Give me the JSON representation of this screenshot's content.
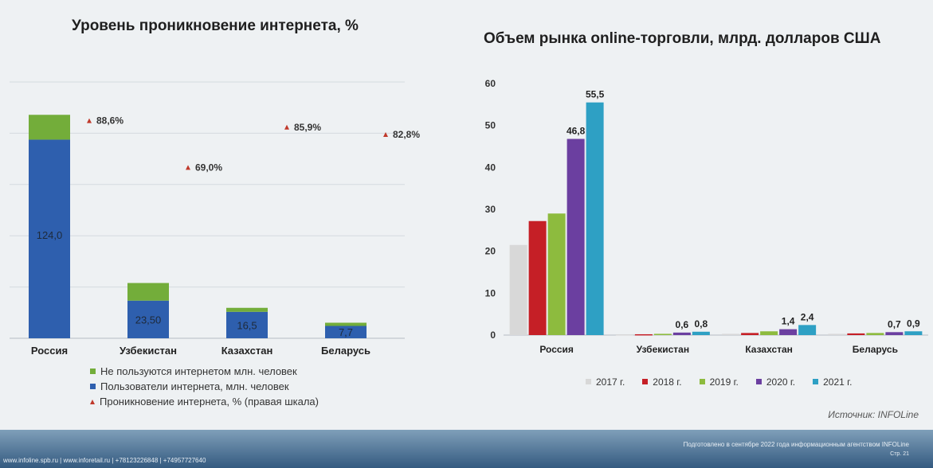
{
  "slide": {
    "source_label": "Источник: INFOLine",
    "footer_left": "www.infoline.spb.ru | www.inforetail.ru | +78123226848 | +74957727640",
    "footer_right": "Подготовлено в сентябре 2022 года информационным агентством INFOLine",
    "footer_page": "Стр. 21"
  },
  "chart_data": [
    {
      "type": "bar",
      "stacked": true,
      "title": "Уровень проникновение интернета, %",
      "categories": [
        "Россия",
        "Узбекистан",
        "Казахстан",
        "Беларусь"
      ],
      "series": [
        {
          "name": "Пользователи интернета, млн. человек",
          "values": [
            124.0,
            23.5,
            16.5,
            7.7
          ],
          "labels": [
            "124,0",
            "23,50",
            "16,5",
            "7,7"
          ],
          "color": "#2e5fae"
        },
        {
          "name": "Не пользуются интернетом млн. человек",
          "values": [
            15.5,
            11.0,
            2.5,
            2.0
          ],
          "color": "#73ad3a"
        }
      ],
      "secondary_series": {
        "name": "Проникновение интернета, % (правая шкала)",
        "type": "marker",
        "values": [
          88.6,
          69.0,
          85.9,
          82.8
        ],
        "labels": [
          "88,6%",
          "69,0%",
          "85,9%",
          "82,8%"
        ],
        "color": "#c0392b"
      },
      "ylim": [
        0,
        160
      ],
      "grid": true,
      "legend": "bottom"
    },
    {
      "type": "bar",
      "title": "Объем рынка online-торговли, млрд. долларов США",
      "categories": [
        "Россия",
        "Узбекистан",
        "Казахстан",
        "Беларусь"
      ],
      "series": [
        {
          "name": "2017 г.",
          "values": [
            21.5,
            0.2,
            0.3,
            0.3
          ],
          "color": "#d8d8d8"
        },
        {
          "name": "2018 г.",
          "values": [
            27.2,
            0.2,
            0.5,
            0.4
          ],
          "color": "#c51f26"
        },
        {
          "name": "2019 г.",
          "values": [
            29.0,
            0.3,
            0.9,
            0.5
          ],
          "color": "#8dbb3e"
        },
        {
          "name": "2020 г.",
          "values": [
            46.8,
            0.6,
            1.4,
            0.7
          ],
          "color": "#6b3fa0"
        },
        {
          "name": "2021 г.",
          "values": [
            55.5,
            0.8,
            2.4,
            0.9
          ],
          "color": "#2ea0c4"
        }
      ],
      "data_labels": {
        "Россия": {
          "2020 г.": "46,8",
          "2021 г.": "55,5"
        },
        "Узбекистан": {
          "2020 г.": "0,6",
          "2021 г.": "0,8"
        },
        "Казахстан": {
          "2020 г.": "1,4",
          "2021 г.": "2,4"
        },
        "Беларусь": {
          "2020 г.": "0,7",
          "2021 г.": "0,9"
        }
      },
      "yticks": [
        "0",
        "10",
        "20",
        "30",
        "40",
        "50",
        "60"
      ],
      "ylim": [
        0,
        60
      ],
      "grid": false,
      "legend": "bottom"
    }
  ]
}
